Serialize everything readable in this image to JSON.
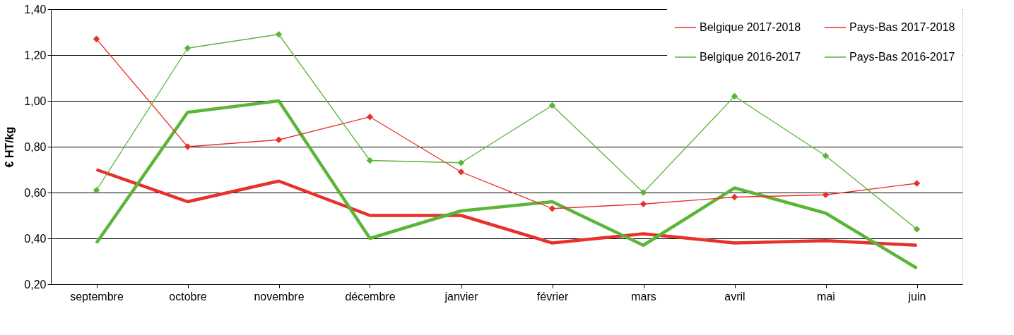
{
  "chart_data": {
    "type": "line",
    "categories": [
      "septembre",
      "octobre",
      "novembre",
      "décembre",
      "janvier",
      "février",
      "mars",
      "avril",
      "mai",
      "juin"
    ],
    "ylabel": "€ HT/kg",
    "ylim": [
      0.2,
      1.4
    ],
    "yticks": [
      {
        "value": 0.2,
        "label": "0,20"
      },
      {
        "value": 0.4,
        "label": "0,40"
      },
      {
        "value": 0.6,
        "label": "0,60"
      },
      {
        "value": 0.8,
        "label": "0,80"
      },
      {
        "value": 1.0,
        "label": "1,00"
      },
      {
        "value": 1.2,
        "label": "1,20"
      },
      {
        "value": 1.4,
        "label": "1,40"
      }
    ],
    "grid": "y",
    "legend": "top right",
    "series": [
      {
        "name": "Belgique 2017-2018",
        "color": "#e8312a",
        "marker": "none",
        "values": [
          0.7,
          0.56,
          0.65,
          0.5,
          0.5,
          0.38,
          0.42,
          0.38,
          0.39,
          0.37
        ]
      },
      {
        "name": "Belgique 2016-2017",
        "color": "#5bb539",
        "marker": "none",
        "values": [
          0.38,
          0.95,
          1.0,
          0.4,
          0.52,
          0.56,
          0.37,
          0.62,
          0.51,
          0.27
        ]
      },
      {
        "name": "Pays-Bas 2017-2018",
        "color": "#e8312a",
        "marker": "diamond",
        "values": [
          1.27,
          0.8,
          0.83,
          0.93,
          0.69,
          0.53,
          0.55,
          0.58,
          0.59,
          0.64
        ]
      },
      {
        "name": "Pays-Bas 2016-2017",
        "color": "#5bb539",
        "marker": "diamond",
        "values": [
          0.61,
          1.23,
          1.29,
          0.74,
          0.73,
          0.98,
          0.6,
          1.02,
          0.76,
          0.44
        ]
      }
    ]
  }
}
